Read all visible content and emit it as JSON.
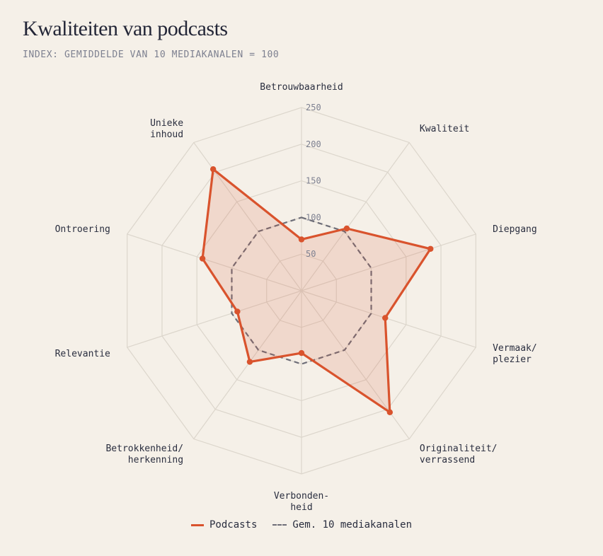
{
  "title": "Kwaliteiten van podcasts",
  "subtitle": "INDEX: GEMIDDELDE VAN 10 MEDIAKANALEN = 100",
  "colors": {
    "podcasts": "#d9532d",
    "average": "#6e6e78",
    "grid": "#dcd6cc",
    "background": "#f5f0e8"
  },
  "chart_data": {
    "type": "radar",
    "axes": [
      [
        "Betrouwbaarheid"
      ],
      [
        "Kwaliteit"
      ],
      [
        "Diepgang"
      ],
      [
        "Vermaak/",
        "plezier"
      ],
      [
        "Originaliteit/",
        "verrassend"
      ],
      [
        "Verbonden-",
        "heid"
      ],
      [
        "Betrokkenheid/",
        "herkenning"
      ],
      [
        "Relevantie"
      ],
      [
        "Ontroering"
      ],
      [
        "Unieke",
        "inhoud"
      ]
    ],
    "rlim": [
      0,
      250
    ],
    "ticks": [
      "50",
      "100",
      "150",
      "200",
      "250"
    ],
    "series": [
      {
        "name": "Podcasts",
        "values": [
          70,
          105,
          185,
          120,
          205,
          85,
          120,
          92,
          142,
          205
        ]
      },
      {
        "name": "Gem. 10 mediakanalen",
        "values": [
          100,
          100,
          100,
          100,
          100,
          100,
          100,
          100,
          100,
          100
        ]
      }
    ],
    "grid": true,
    "legend_position": "bottom"
  }
}
